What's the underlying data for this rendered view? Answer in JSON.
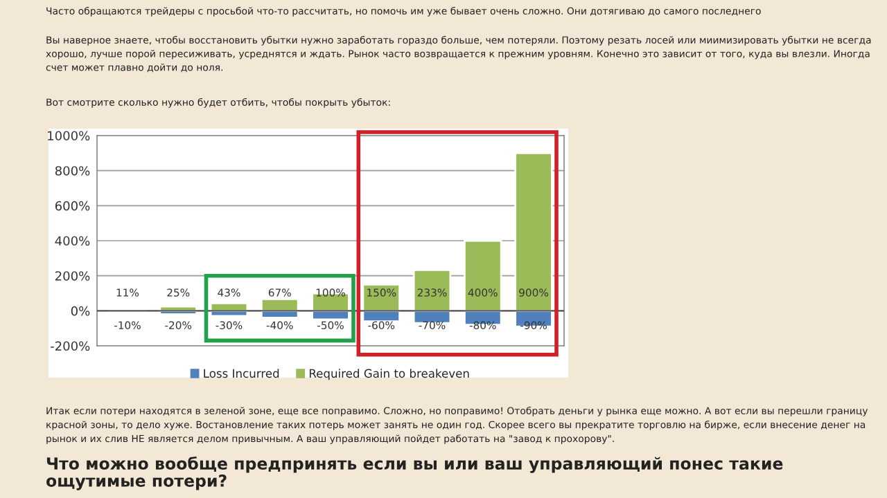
{
  "chart_data": {
    "type": "bar",
    "categories": [
      null,
      null,
      null,
      null,
      null,
      null,
      null,
      null,
      null
    ],
    "stacked": true,
    "series": [
      {
        "name": "Loss Incurred",
        "color": "#4f81bd",
        "values": [
          -10,
          -20,
          -30,
          -40,
          -50,
          -60,
          -70,
          -80,
          -90
        ],
        "value_labels": [
          "-10%",
          "-20%",
          "-30%",
          "-40%",
          "-50%",
          "-60%",
          "-70%",
          "-80%",
          "-90%"
        ]
      },
      {
        "name": "Required Gain to breakeven",
        "color": "#9bbb59",
        "values": [
          11,
          25,
          43,
          67,
          100,
          150,
          233,
          400,
          900
        ],
        "value_labels": [
          "11%",
          "25%",
          "43%",
          "67%",
          "100%",
          "150%",
          "233%",
          "400%",
          "900%"
        ]
      }
    ],
    "ylim": [
      -200,
      1000
    ],
    "yticks": [
      {
        "value": -200,
        "label": "-200%"
      },
      {
        "value": 0,
        "label": "0%"
      },
      {
        "value": 200,
        "label": "200%"
      },
      {
        "value": 400,
        "label": "400%"
      },
      {
        "value": 600,
        "label": "600%"
      },
      {
        "value": 800,
        "label": "800%"
      },
      {
        "value": 1000,
        "label": "1000%"
      }
    ],
    "grid": "y",
    "legend": "bottom",
    "tick_labels": "y",
    "annotations": [
      "Часто обращаются трейдеры с просьбой что-то рассчитать, но помочь им уже бывает очень сложно. Они дотягиваю до самого последнего",
      "Вы наверное знаете, чтобы восстановить убытки нужно заработать гораздо больше, чем потеряли. Поэтому резать лосей или миимизировать убытки не всегда хорошо, лучше порой пересиживать, усреднятся и ждать. Рынок часто возвращается к прежним уровням. Конечно это зависит от того, куда вы влезли. Иногда счет может плавно дойти до ноля.",
      "Вот смотрите сколько нужно будет отбить, чтобы покрыть убыток:",
      "Итак если потери находятся в зеленой зоне, еще все поправимо. Сложно, но поправимо! Отобрать деньги у рынка еще можно. А вот если вы перешли границу красной зоны, то дело хуже. Востановление таких потерь может занять не один год. Скорее всего вы прекратите торговлю на бирже, если внесение денег на рынок и их слив НЕ является делом привычным. А ваш управляющий пойдет работать на \"завод к прохорову\".",
      "Что можно вообще предпринять если вы или ваш управляющий понес такие ощутимые потери?"
    ]
  }
}
